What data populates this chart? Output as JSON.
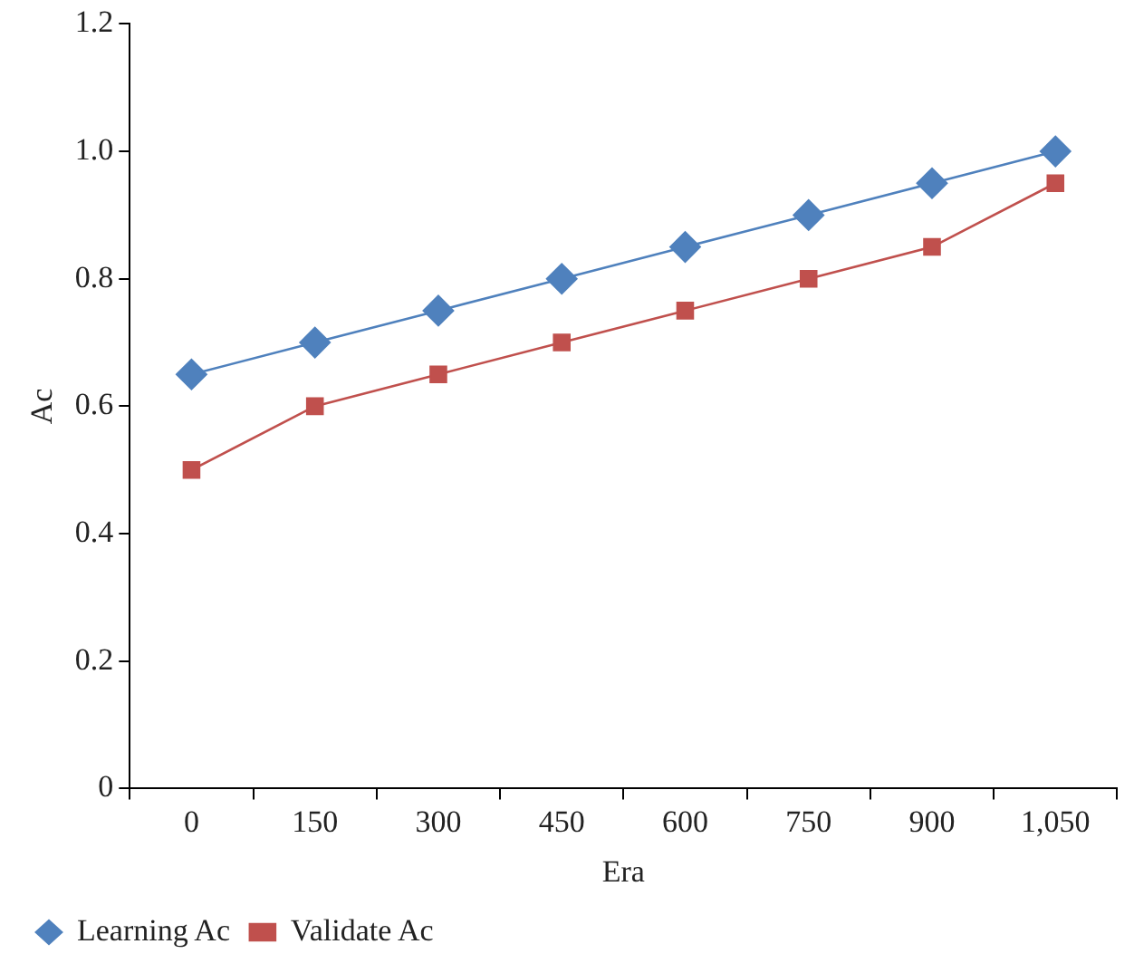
{
  "chart_data": {
    "type": "line",
    "xlabel": "Era",
    "ylabel": "Ac",
    "categories": [
      "0",
      "150",
      "300",
      "450",
      "600",
      "750",
      "900",
      "1,050"
    ],
    "series": [
      {
        "name": "Learning Ac",
        "color": "#4f81bd",
        "marker": "diamond",
        "values": [
          0.65,
          0.7,
          0.75,
          0.8,
          0.85,
          0.9,
          0.95,
          1.0
        ]
      },
      {
        "name": "Validate Ac",
        "color": "#c0504d",
        "marker": "square",
        "values": [
          0.5,
          0.6,
          0.65,
          0.7,
          0.75,
          0.8,
          0.85,
          0.95
        ]
      }
    ],
    "ylim": [
      0,
      1.2
    ],
    "yticks": [
      0,
      0.2,
      0.4,
      0.6,
      0.8,
      {
        "value": 1,
        "label": "1.0"
      },
      1.2
    ],
    "grid": false,
    "legend": "bottom left",
    "line_style": "solid"
  }
}
